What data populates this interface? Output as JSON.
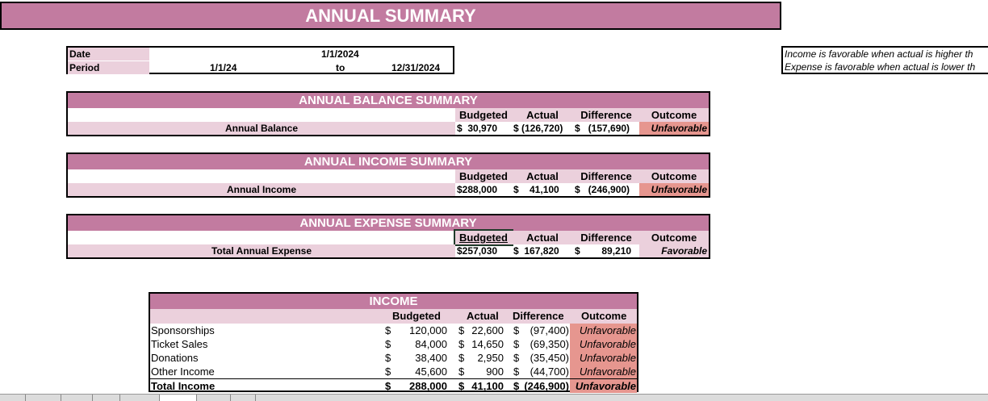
{
  "title": "ANNUAL SUMMARY",
  "date_box": {
    "date_label": "Date",
    "date_value": "1/1/2024",
    "period_label": "Period",
    "period_start": "1/1/24",
    "period_to": "to",
    "period_end": "12/31/2024"
  },
  "notes": [
    "Income is favorable when actual is higher th",
    "Expense is favorable when actual is lower th"
  ],
  "columns": {
    "budgeted": "Budgeted",
    "actual": "Actual",
    "difference": "Difference",
    "outcome": "Outcome"
  },
  "summaries": [
    {
      "title": "ANNUAL BALANCE SUMMARY",
      "label": "Annual Balance",
      "budgeted": "$  30,970",
      "actual": "$ (126,720)",
      "difference": "$   (157,690)",
      "outcome": "Unfavorable",
      "outcome_status": "unfavorable"
    },
    {
      "title": "ANNUAL INCOME SUMMARY",
      "label": "Annual Income",
      "budgeted": "$288,000",
      "actual": "$    41,100",
      "difference": "$   (246,900)",
      "outcome": "Unfavorable",
      "outcome_status": "unfavorable"
    },
    {
      "title": "ANNUAL EXPENSE SUMMARY",
      "label": "Total Annual Expense",
      "budgeted": "$257,030",
      "actual": "$  167,820",
      "difference": "$        89,210",
      "outcome": "Favorable",
      "outcome_status": "favorable"
    }
  ],
  "income_table": {
    "title": "INCOME",
    "rows": [
      {
        "label": "Sponsorships",
        "budgeted": "120,000",
        "actual": "22,600",
        "difference": "(97,400)",
        "outcome": "Unfavorable"
      },
      {
        "label": "Ticket Sales",
        "budgeted": "84,000",
        "actual": "14,650",
        "difference": "(69,350)",
        "outcome": "Unfavorable"
      },
      {
        "label": "Donations",
        "budgeted": "38,400",
        "actual": "2,950",
        "difference": "(35,450)",
        "outcome": "Unfavorable"
      },
      {
        "label": "Other Income",
        "budgeted": "45,600",
        "actual": "900",
        "difference": "(44,700)",
        "outcome": "Unfavorable"
      }
    ],
    "total": {
      "label": "Total Income",
      "budgeted": "288,000",
      "actual": "41,100",
      "difference": "(246,900)",
      "outcome": "Unfavorable"
    },
    "currency": "$"
  },
  "colors": {
    "header": "#C27BA0",
    "light": "#EBD0DC",
    "unfavorable": "#E6968F"
  }
}
